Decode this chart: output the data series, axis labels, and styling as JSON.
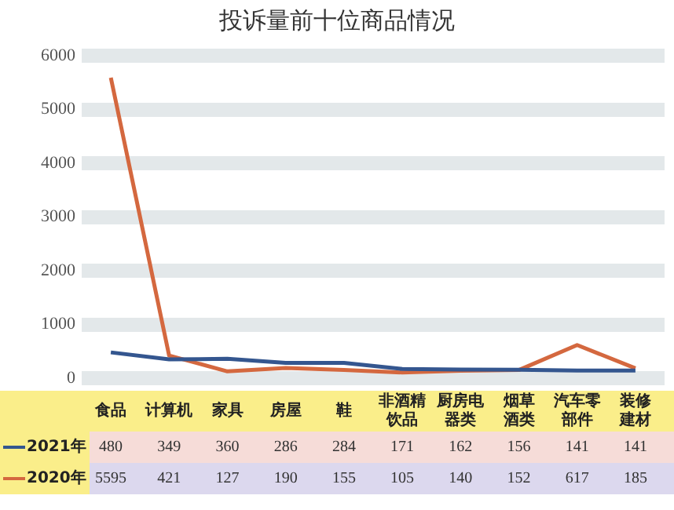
{
  "chart_data": {
    "type": "line",
    "title": "投诉量前十位商品情况",
    "categories": [
      "食品",
      "计算机",
      "家具",
      "房屋",
      "鞋",
      "非酒精饮品",
      "厨房电器类",
      "烟草酒类",
      "汽车零部件",
      "装修建材"
    ],
    "series": [
      {
        "name": "2021年",
        "color": "#34568f",
        "values": [
          480,
          349,
          360,
          286,
          284,
          171,
          162,
          156,
          141,
          141
        ]
      },
      {
        "name": "2020年",
        "color": "#d4683f",
        "values": [
          5595,
          421,
          127,
          190,
          155,
          105,
          140,
          152,
          617,
          185
        ]
      }
    ],
    "ylim": [
      0,
      6000
    ],
    "yticks": [
      0,
      1000,
      2000,
      3000,
      4000,
      5000,
      6000
    ],
    "grid": "y",
    "legend": "bottom",
    "data_labels": true,
    "marker": "none"
  }
}
